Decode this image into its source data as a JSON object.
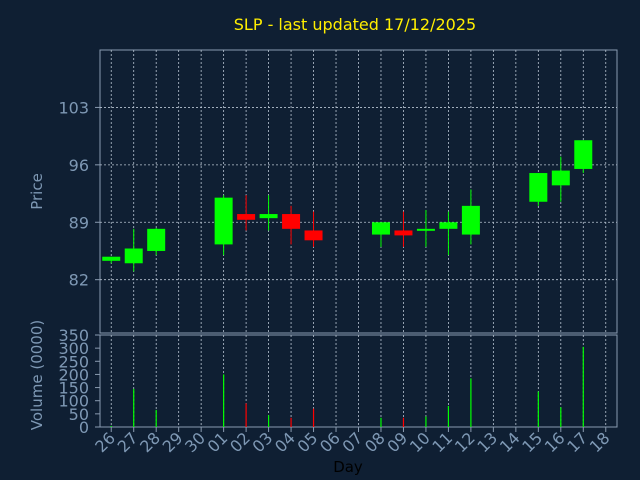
{
  "title": "SLP - last updated 17/12/2025",
  "chart_data": [
    {
      "type": "candlestick",
      "ylabel": "Price",
      "ylim": [
        75.5,
        110
      ],
      "yticks": [
        82,
        89,
        96,
        103
      ],
      "grid": true,
      "up_color": "#00ff00",
      "down_color": "#ff0000",
      "candles": [
        {
          "day": "26",
          "open": 84.3,
          "high": 84.8,
          "low": 84.0,
          "close": 84.8
        },
        {
          "day": "27",
          "open": 84.0,
          "high": 88.2,
          "low": 83.0,
          "close": 85.8
        },
        {
          "day": "28",
          "open": 85.5,
          "high": 88.3,
          "low": 85.0,
          "close": 88.2
        },
        {
          "day": "01",
          "open": 86.3,
          "high": 92.3,
          "low": 85.0,
          "close": 92.0
        },
        {
          "day": "02",
          "open": 90.0,
          "high": 92.3,
          "low": 88.0,
          "close": 89.3
        },
        {
          "day": "03",
          "open": 89.5,
          "high": 92.3,
          "low": 88.0,
          "close": 90.0
        },
        {
          "day": "04",
          "open": 90.0,
          "high": 91.0,
          "low": 86.3,
          "close": 88.2
        },
        {
          "day": "05",
          "open": 88.0,
          "high": 90.3,
          "low": 86.0,
          "close": 86.8
        },
        {
          "day": "08",
          "open": 87.5,
          "high": 89.0,
          "low": 86.0,
          "close": 89.0
        },
        {
          "day": "09",
          "open": 88.0,
          "high": 90.3,
          "low": 86.0,
          "close": 87.4
        },
        {
          "day": "10",
          "open": 88.0,
          "high": 90.5,
          "low": 86.0,
          "close": 88.2
        },
        {
          "day": "11",
          "open": 88.2,
          "high": 90.3,
          "low": 85.0,
          "close": 89.0
        },
        {
          "day": "12",
          "open": 87.5,
          "high": 93.0,
          "low": 86.3,
          "close": 91.0
        },
        {
          "day": "15",
          "open": 91.5,
          "high": 95.0,
          "low": 91.0,
          "close": 95.0
        },
        {
          "day": "16",
          "open": 93.5,
          "high": 97.0,
          "low": 91.5,
          "close": 95.3
        },
        {
          "day": "17",
          "open": 95.5,
          "high": 99.0,
          "low": 95.0,
          "close": 99.0
        }
      ]
    },
    {
      "type": "bar",
      "ylabel": "Volume (0000)",
      "xlabel": "Day",
      "ylim": [
        0,
        350
      ],
      "yticks": [
        0,
        50,
        100,
        150,
        200,
        250,
        300,
        350
      ],
      "grid": true,
      "categories": [
        "26",
        "27",
        "28",
        "29",
        "30",
        "01",
        "02",
        "03",
        "04",
        "05",
        "06",
        "07",
        "08",
        "09",
        "10",
        "11",
        "12",
        "13",
        "14",
        "15",
        "16",
        "17",
        "18"
      ],
      "values": [
        4,
        145,
        65,
        0,
        0,
        200,
        90,
        45,
        35,
        70,
        0,
        0,
        35,
        35,
        40,
        80,
        185,
        0,
        0,
        135,
        75,
        305,
        0
      ],
      "bar_colors": [
        "#00ff00",
        "#00ff00",
        "#00ff00",
        "#00ff00",
        "#00ff00",
        "#00ff00",
        "#ff0000",
        "#00ff00",
        "#ff0000",
        "#ff0000",
        "#00ff00",
        "#00ff00",
        "#00ff00",
        "#ff0000",
        "#00ff00",
        "#00ff00",
        "#00ff00",
        "#00ff00",
        "#00ff00",
        "#00ff00",
        "#00ff00",
        "#00ff00",
        "#00ff00"
      ]
    }
  ]
}
